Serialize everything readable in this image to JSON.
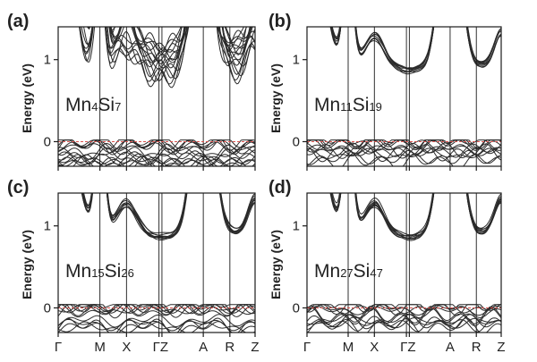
{
  "chart_data": [
    {
      "type": "line",
      "panel_label": "(a)",
      "compound": {
        "base": "Mn",
        "n1": "4",
        "el2": "Si",
        "n2": "7"
      },
      "ylabel": "Energy (eV)",
      "ylim": [
        -0.3,
        1.4
      ],
      "yticks": [
        0,
        1
      ],
      "fermi_level": 0,
      "kpath": [
        "Γ",
        "M",
        "X",
        "Γ",
        "Z",
        "A",
        "R",
        "Z"
      ],
      "kpositions": [
        0,
        0.212,
        0.347,
        0.512,
        0.527,
        0.737,
        0.872,
        1.0
      ],
      "xtick_labels": [],
      "band_style": "dense",
      "conduction_band_minimum_eV": 0.78,
      "valence_band_maximum_eV": 0.02
    },
    {
      "type": "line",
      "panel_label": "(b)",
      "compound": {
        "base": "Mn",
        "n1": "11",
        "el2": "Si",
        "n2": "19"
      },
      "ylabel": "Energy (eV)",
      "ylim": [
        -0.3,
        1.4
      ],
      "yticks": [
        0,
        1
      ],
      "fermi_level": 0,
      "kpath": [
        "Γ",
        "M",
        "X",
        "Γ",
        "Z",
        "A",
        "R",
        "Z"
      ],
      "kpositions": [
        0,
        0.212,
        0.347,
        0.512,
        0.527,
        0.737,
        0.872,
        1.0
      ],
      "xtick_labels": [],
      "band_style": "bundle",
      "conduction_band_minimum_eV": 0.88,
      "valence_band_maximum_eV": 0.02
    },
    {
      "type": "line",
      "panel_label": "(c)",
      "compound": {
        "base": "Mn",
        "n1": "15",
        "el2": "Si",
        "n2": "26"
      },
      "ylabel": "Energy (eV)",
      "ylim": [
        -0.3,
        1.4
      ],
      "yticks": [
        0,
        1
      ],
      "fermi_level": 0,
      "kpath": [
        "Γ",
        "M",
        "X",
        "Γ",
        "Z",
        "A",
        "R",
        "Z"
      ],
      "kpositions": [
        0,
        0.212,
        0.347,
        0.512,
        0.527,
        0.737,
        0.872,
        1.0
      ],
      "xtick_labels": [
        "Γ",
        "M",
        "X",
        "ΓZ",
        "A",
        "R",
        "Z"
      ],
      "band_style": "bundle",
      "conduction_band_minimum_eV": 0.88,
      "valence_band_maximum_eV": 0.04
    },
    {
      "type": "line",
      "panel_label": "(d)",
      "compound": {
        "base": "Mn",
        "n1": "27",
        "el2": "Si",
        "n2": "47"
      },
      "ylabel": "Energy (eV)",
      "ylim": [
        -0.3,
        1.4
      ],
      "yticks": [
        0,
        1
      ],
      "fermi_level": 0,
      "kpath": [
        "Γ",
        "M",
        "X",
        "Γ",
        "Z",
        "A",
        "R",
        "Z"
      ],
      "kpositions": [
        0,
        0.212,
        0.347,
        0.512,
        0.527,
        0.737,
        0.872,
        1.0
      ],
      "xtick_labels": [
        "Γ",
        "M",
        "X",
        "ΓZ",
        "A",
        "R",
        "Z"
      ],
      "band_style": "bundle",
      "conduction_band_minimum_eV": 0.88,
      "valence_band_maximum_eV": 0.04
    }
  ],
  "colors": {
    "band_line": "#2b2b2b",
    "frame": "#1a1a1a",
    "fermi_line": "#d9534f",
    "text": "#222222",
    "background": "#ffffff"
  }
}
